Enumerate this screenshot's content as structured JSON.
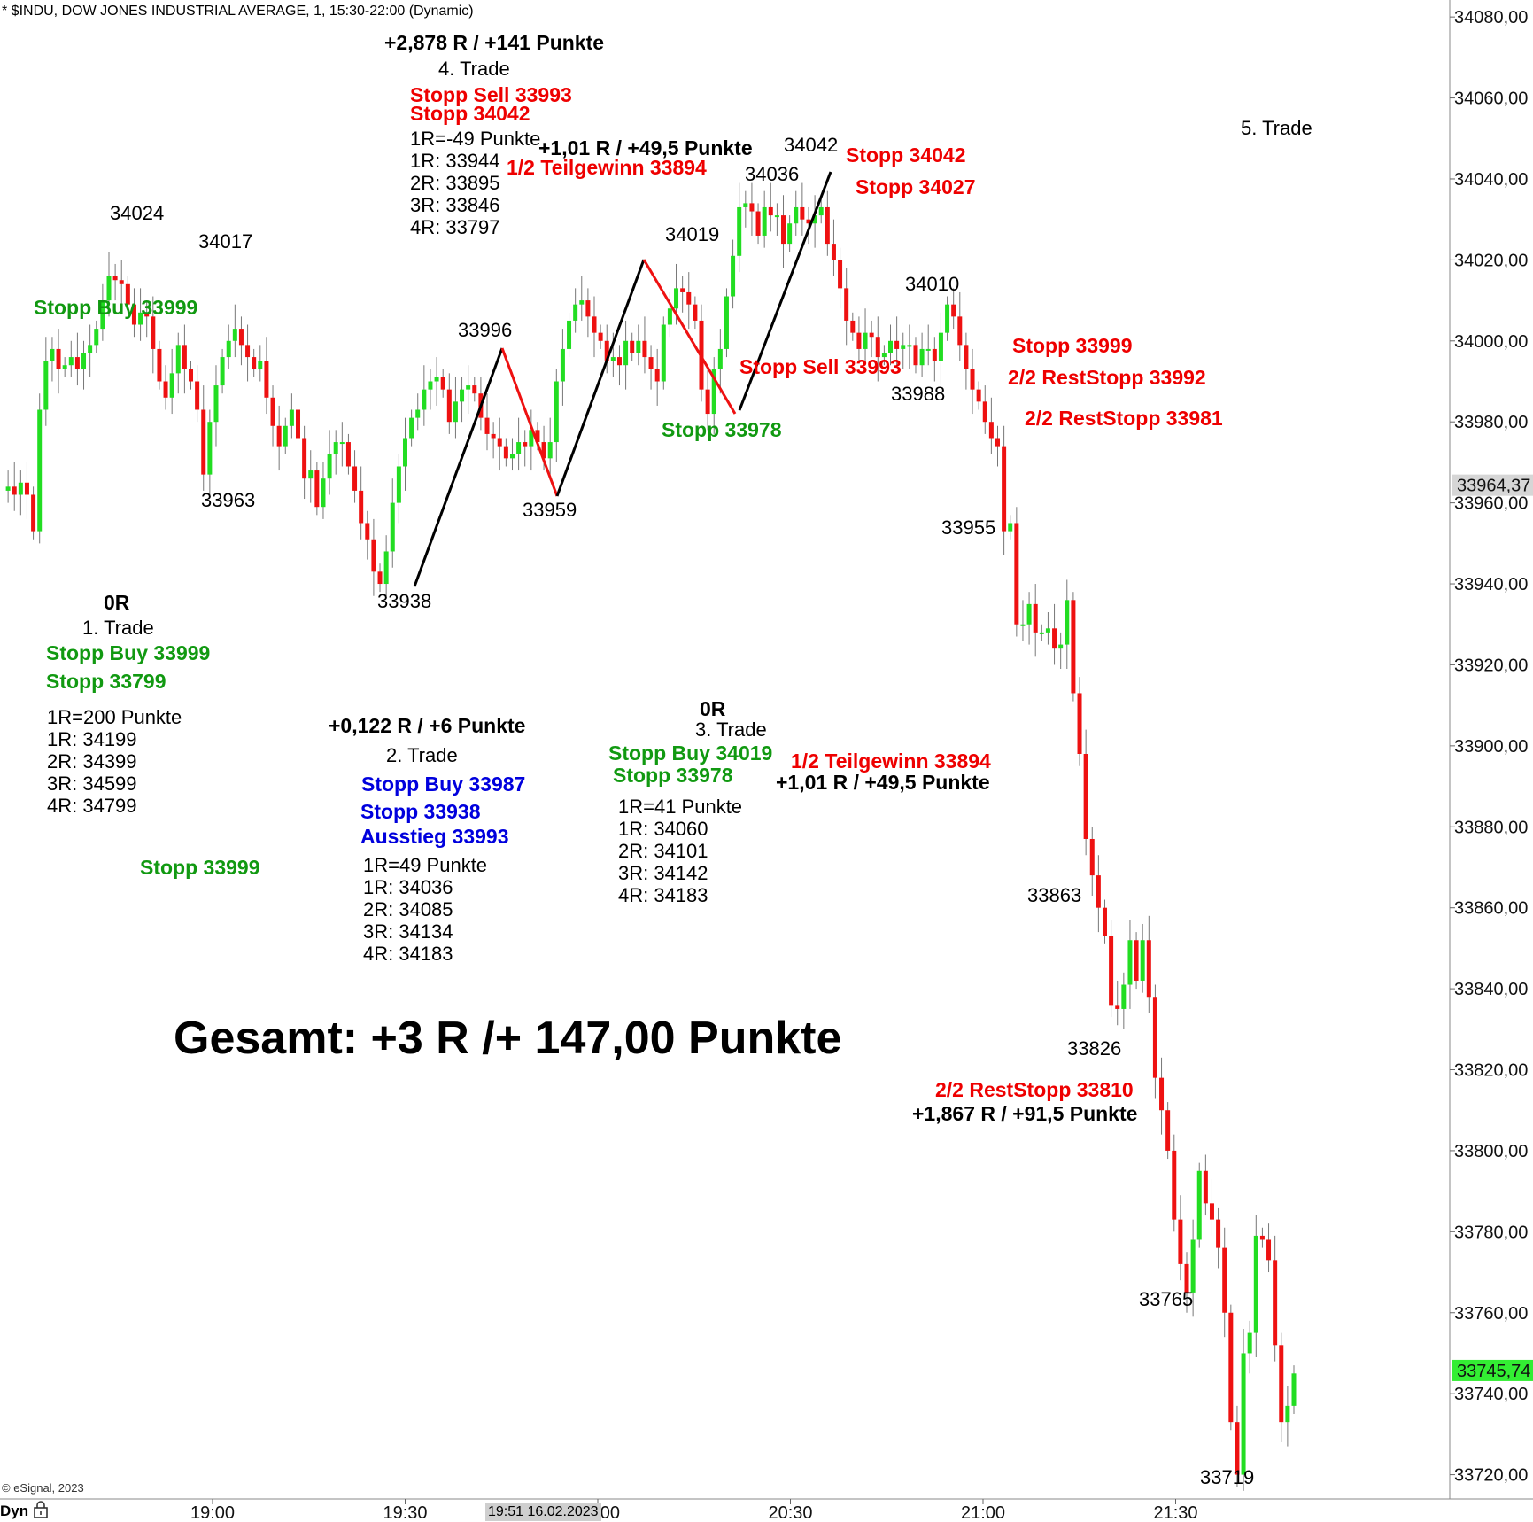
{
  "header": {
    "title": "* $INDU, DOW JONES INDUSTRIAL AVERAGE, 1, 15:30-22:00 (Dynamic)"
  },
  "footer": {
    "copyright": "© eSignal, 2023",
    "mode": "Dyn",
    "cursor_time": "19:51 16.02.2023"
  },
  "colors": {
    "up": "#22dd22",
    "down": "#ee1111",
    "red": "#ee0000",
    "green": "#119911",
    "blue": "#0000dd",
    "black": "#000000",
    "last_price_bg": "#33ee33",
    "cursor_bg": "#cfcfcf"
  },
  "icons": {
    "lock": "lock-icon"
  },
  "chart_data": {
    "type": "candlestick",
    "title": "* $INDU, DOW JONES INDUSTRIAL AVERAGE, 1, 15:30-22:00 (Dynamic)",
    "xlabel": "",
    "ylabel": "",
    "ylim": [
      33714,
      34082
    ],
    "x_ticks": [
      "19:00",
      "19:30",
      "20:00",
      "20:30",
      "21:00",
      "21:30"
    ],
    "y_ticks": [
      "34080,00",
      "34060,00",
      "34040,00",
      "34020,00",
      "34000,00",
      "33980,00",
      "33960,00",
      "33940,00",
      "33920,00",
      "33900,00",
      "33880,00",
      "33860,00",
      "33840,00",
      "33820,00",
      "33800,00",
      "33780,00",
      "33760,00",
      "33740,00",
      "33720,00"
    ],
    "y_tick_values": [
      34080,
      34060,
      34040,
      34020,
      34000,
      33980,
      33960,
      33940,
      33920,
      33900,
      33880,
      33860,
      33840,
      33820,
      33800,
      33780,
      33760,
      33740,
      33720
    ],
    "price_markers": [
      {
        "label": "33964,37",
        "value": 33964.37,
        "style": "gray"
      },
      {
        "label": "33745,74",
        "value": 33745.74,
        "style": "green"
      }
    ],
    "grid": false,
    "candles_approx_close": [
      33963,
      33964,
      33962,
      33965,
      33962,
      33953,
      33983,
      33995,
      33998,
      33993,
      33994,
      33996,
      33993,
      33997,
      33999,
      34003,
      34010,
      34016,
      34015,
      34014,
      34009,
      34004,
      34007,
      34006,
      33998,
      33990,
      33986,
      33992,
      33999,
      33993,
      33990,
      33983,
      33967,
      33980,
      33989,
      33996,
      34000,
      34003,
      33999,
      33996,
      33993,
      33995,
      33986,
      33979,
      33974,
      33979,
      33983,
      33976,
      33966,
      33968,
      33959,
      33966,
      33972,
      33975,
      33975,
      33969,
      33963,
      33955,
      33951,
      33943,
      33940,
      33948,
      33960,
      33969,
      33976,
      33981,
      33983,
      33988,
      33990,
      33991,
      33988,
      33980,
      33985,
      33988,
      33989,
      33987,
      33981,
      33977,
      33976,
      33974,
      33971,
      33972,
      33975,
      33974,
      33978,
      33975,
      33971,
      33975,
      33990,
      33998,
      34005,
      34009,
      34010,
      34006,
      34002,
      34000,
      33995,
      33996,
      33994,
      34000,
      33997,
      34000,
      33996,
      33993,
      33990,
      34004,
      34008,
      34013,
      34012,
      34009,
      34005,
      33988,
      33982,
      33993,
      33998,
      34011,
      34021,
      34033,
      34034,
      34032,
      34026,
      34033,
      34031,
      34031,
      34024,
      34029,
      34033,
      34030,
      34029,
      34031,
      34033,
      34024,
      34020,
      34013,
      34005,
      34002,
      33998,
      34002,
      34001,
      33996,
      33997,
      34000,
      33998,
      33999,
      33999,
      33994,
      33998,
      33998,
      33995,
      34002,
      34009,
      34006,
      33999,
      33993,
      33988,
      33985,
      33980,
      33976,
      33974,
      33953,
      33955,
      33930,
      33930,
      33935,
      33928,
      33928,
      33929,
      33924,
      33925,
      33936,
      33913,
      33898,
      33877,
      33868,
      33860,
      33853,
      33836,
      33835,
      33841,
      33852,
      33842,
      33852,
      33838,
      33818,
      33810,
      33800,
      33783,
      33772,
      33765,
      33778,
      33795,
      33787,
      33783,
      33776,
      33760,
      33733,
      33720,
      33750,
      33755,
      33779,
      33778,
      33773,
      33752,
      33733,
      33737,
      33745
    ]
  },
  "annotations": {
    "prices": [
      {
        "text": "34024"
      },
      {
        "text": "34017"
      },
      {
        "text": "33963"
      },
      {
        "text": "33938"
      },
      {
        "text": "33996"
      },
      {
        "text": "33959"
      },
      {
        "text": "34019"
      },
      {
        "text": "34036"
      },
      {
        "text": "34042"
      },
      {
        "text": "34010"
      },
      {
        "text": "33988"
      },
      {
        "text": "33955"
      },
      {
        "text": "33863"
      },
      {
        "text": "33826"
      },
      {
        "text": "33765"
      },
      {
        "text": "33719"
      }
    ],
    "trade1": {
      "r": "0R",
      "name": "1. Trade",
      "entry": "Stopp Buy 33999",
      "stop": "Stopp 33799",
      "lines": [
        "1R=200 Punkte",
        "1R: 34199",
        "2R: 34399",
        "3R: 34599",
        "4R: 34799"
      ],
      "stopp_left": "Stopp Buy 33999",
      "stopp_bottom": "Stopp 33999"
    },
    "trade2": {
      "result": "+0,122 R / +6 Punkte",
      "name": "2. Trade",
      "entry": "Stopp Buy 33987",
      "stop": "Stopp 33938",
      "exit": "Ausstieg 33993",
      "lines": [
        "1R=49 Punkte",
        "1R: 34036",
        "2R: 34085",
        "3R: 34134",
        "4R: 34183"
      ]
    },
    "trade3": {
      "r": "0R",
      "name": "3. Trade",
      "entry": "Stopp Buy 34019",
      "stop": "Stopp 33978",
      "lines": [
        "1R=41 Punkte",
        "1R: 34060",
        "2R: 34101",
        "3R: 34142",
        "4R: 34183"
      ],
      "stopp_near": "Stopp 33978",
      "stopp_sell": "Stopp Sell 33993"
    },
    "trade4": {
      "result": "+2,878 R / +141 Punkte",
      "name": "4. Trade",
      "entry": "Stopp Sell 33993",
      "stop": "Stopp 34042",
      "lines": [
        "1R=-49 Punkte",
        "1R: 33944",
        "2R: 33895",
        "3R: 33846",
        "4R: 33797"
      ],
      "result_partial_top": "+1,01 R / +49,5 Punkte",
      "partial_top": "1/2 Teilgewinn 33894",
      "stopp_34042": "Stopp 34042",
      "stopp_34027": "Stopp 34027",
      "stopp_33999": "Stopp 33999",
      "rest_33992": "2/2 RestStopp 33992",
      "rest_33981": "2/2 RestStopp 33981",
      "partial_mid": "1/2 Teilgewinn 33894",
      "result_partial_mid": "+1,01 R / +49,5 Punkte",
      "rest_33810": "2/2 RestStopp 33810",
      "result_rest": "+1,867 R / +91,5 Punkte"
    },
    "trade5": {
      "name": "5. Trade"
    },
    "total": "Gesamt: +3 R /+ 147,00 Punkte"
  }
}
